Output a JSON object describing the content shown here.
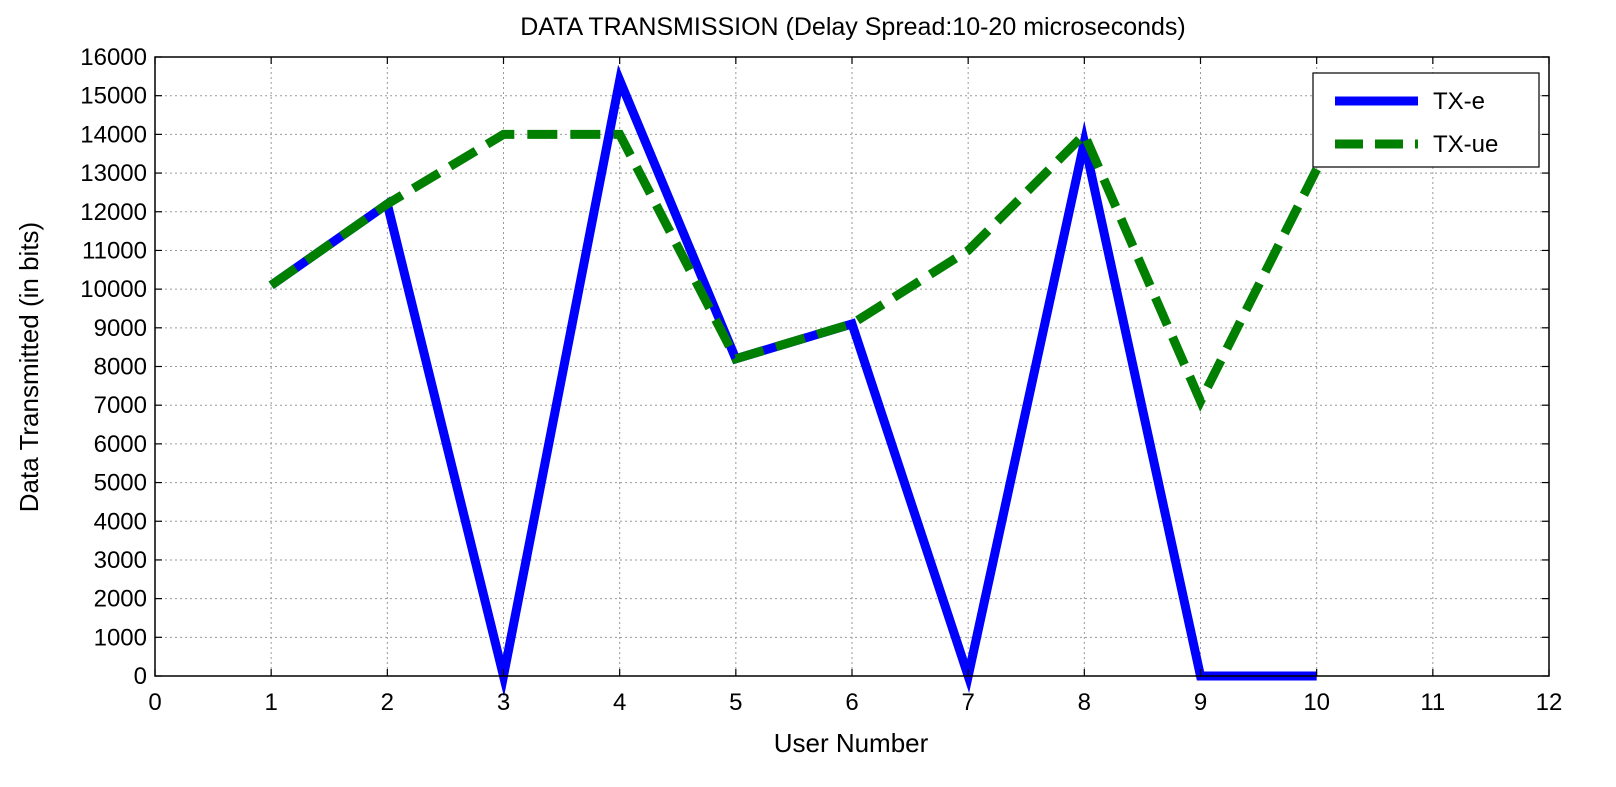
{
  "chart_data": {
    "type": "line",
    "title": "DATA TRANSMISSION  (Delay Spread:10-20 microseconds)",
    "xlabel": "User Number",
    "ylabel": "Data Transmitted (in bits)",
    "xlim": [
      0,
      12
    ],
    "ylim": [
      0,
      16000
    ],
    "xticks": [
      "0",
      "1",
      "2",
      "3",
      "4",
      "5",
      "6",
      "7",
      "8",
      "9",
      "10",
      "11",
      "12"
    ],
    "yticks": [
      "0",
      "1000",
      "2000",
      "3000",
      "4000",
      "5000",
      "6000",
      "7000",
      "8000",
      "9000",
      "10000",
      "11000",
      "12000",
      "13000",
      "14000",
      "15000",
      "16000"
    ],
    "grid": true,
    "legend_position": "top-right",
    "series": [
      {
        "name": "TX-e",
        "color": "#0000ff",
        "style": "solid",
        "x": [
          1,
          2,
          3,
          4,
          5,
          6,
          7,
          8,
          9,
          10
        ],
        "values": [
          10100,
          12200,
          0,
          15400,
          8200,
          9100,
          0,
          13800,
          0,
          0
        ]
      },
      {
        "name": "TX-ue",
        "color": "#007f00",
        "style": "dashed",
        "x": [
          1,
          2,
          3,
          4,
          5,
          6,
          7,
          8,
          9,
          10
        ],
        "values": [
          10100,
          12200,
          14000,
          14000,
          8200,
          9100,
          11000,
          14000,
          7100,
          13100
        ]
      }
    ]
  }
}
